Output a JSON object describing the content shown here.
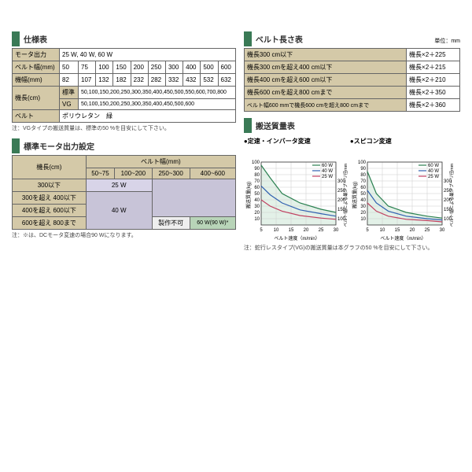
{
  "spec": {
    "title": "仕様表",
    "rows": [
      {
        "label": "モータ出力",
        "value": "25 W, 40 W, 60 W"
      },
      {
        "label": "ベルト幅(mm)",
        "cells": [
          "50",
          "75",
          "100",
          "150",
          "200",
          "250",
          "300",
          "400",
          "500",
          "600"
        ]
      },
      {
        "label": "機幅(mm)",
        "cells": [
          "82",
          "107",
          "132",
          "182",
          "232",
          "282",
          "332",
          "432",
          "532",
          "632"
        ]
      },
      {
        "label": "機長(cm)",
        "sub1": "標準",
        "val1": "50,100,150,200,250,300,350,400,450,500,550,600,700,800",
        "sub2": "VG",
        "val2": "50,100,150,200,250,300,350,400,450,500,600"
      },
      {
        "label": "ベルト",
        "value": "ポリウレタン　緑"
      }
    ],
    "note": "注：VGタイプの搬送質量は、標準の50 %を目安にして下さい。"
  },
  "belt_len": {
    "title": "ベルト長さ表",
    "unit": "単位：mm",
    "rows": [
      [
        "機長300 cm以下",
        "機長×2＋225"
      ],
      [
        "機長300 cmを超え400 cm以下",
        "機長×2＋215"
      ],
      [
        "機長400 cmを超え600 cm以下",
        "機長×2＋210"
      ],
      [
        "機長600 cmを超え800 cmまで",
        "機長×2＋350"
      ],
      [
        "ベルト幅600 mmで機長600 cmを超え800 cmまで",
        "機長×2＋360"
      ]
    ]
  },
  "motor": {
    "title": "標準モータ出力設定",
    "col_header": "ベルト幅(mm)",
    "row_header": "機長(cm)",
    "cols": [
      "50~75",
      "100~200",
      "250~300",
      "400~600"
    ],
    "rows": [
      "300以下",
      "300を超え 400以下",
      "400を超え 600以下",
      "600を超え 800まで"
    ],
    "v25": "25 W",
    "v40": "40 W",
    "v60": "60 W(90 W)*",
    "impossible": "製作不可",
    "note": "注：※は、DCモータ変速の場合90 Wになります。",
    "colors": {
      "c25": "#d8d4e8",
      "c40": "#c8c4d8",
      "c60": "#b8d4b8"
    }
  },
  "transport": {
    "title": "搬送質量表",
    "chart1_title": "●定速・インバータ変速",
    "chart2_title": "●スピコン変速",
    "xlabel": "ベルト速度（m/min）",
    "ylabel_left": "搬送質量(kg)",
    "ylabel_right": "ベルト幅による最少プーリ径mm",
    "xticks": [
      5,
      10,
      15,
      20,
      25,
      30
    ],
    "yticks_left": [
      10,
      20,
      30,
      40,
      50,
      60,
      70,
      80,
      90,
      100
    ],
    "yticks_right": [
      100,
      150,
      200,
      250,
      300
    ],
    "legend": [
      "60 W",
      "40 W",
      "25 W"
    ],
    "legend_colors": [
      "#2a8050",
      "#3060b0",
      "#c04060"
    ],
    "chart1": {
      "s60": [
        [
          5,
          95
        ],
        [
          8,
          75
        ],
        [
          12,
          50
        ],
        [
          18,
          35
        ],
        [
          25,
          25
        ],
        [
          30,
          20
        ]
      ],
      "s40": [
        [
          5,
          62
        ],
        [
          8,
          48
        ],
        [
          12,
          35
        ],
        [
          18,
          24
        ],
        [
          25,
          18
        ],
        [
          30,
          14
        ]
      ],
      "s25": [
        [
          5,
          40
        ],
        [
          8,
          30
        ],
        [
          12,
          22
        ],
        [
          18,
          15
        ],
        [
          25,
          11
        ],
        [
          30,
          9
        ]
      ],
      "fill_color": "#d0e8d8"
    },
    "chart2": {
      "s60": [
        [
          5,
          85
        ],
        [
          8,
          50
        ],
        [
          12,
          30
        ],
        [
          18,
          20
        ],
        [
          25,
          14
        ],
        [
          30,
          11
        ]
      ],
      "s40": [
        [
          5,
          55
        ],
        [
          8,
          35
        ],
        [
          12,
          22
        ],
        [
          18,
          14
        ],
        [
          25,
          10
        ],
        [
          30,
          8
        ]
      ],
      "s25": [
        [
          5,
          35
        ],
        [
          8,
          22
        ],
        [
          12,
          14
        ],
        [
          18,
          9
        ],
        [
          25,
          7
        ],
        [
          30,
          5
        ]
      ],
      "fill_color": "#d0e8d8"
    },
    "note": "注：蛇行レスタイプ(VG)の搬送質量は本グラフの50 %を目安にして下さい。"
  }
}
